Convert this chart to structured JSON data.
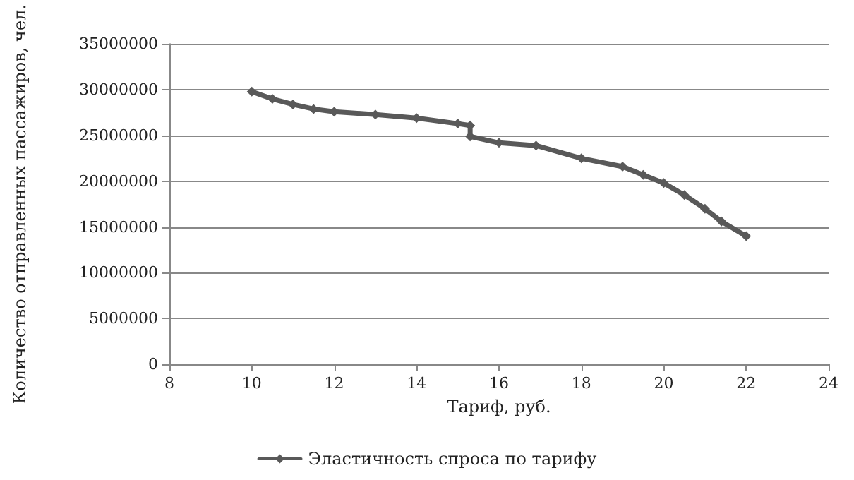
{
  "chart_data": {
    "type": "line",
    "xlabel": "Тариф, руб.",
    "ylabel": "Количество отправленных пассажиров, чел.",
    "xlim": [
      8,
      24
    ],
    "xticks": [
      8,
      10,
      12,
      14,
      16,
      18,
      20,
      22,
      24
    ],
    "ylim": [
      0,
      35000000
    ],
    "yticks": [
      0,
      5000000,
      10000000,
      15000000,
      20000000,
      25000000,
      30000000,
      35000000
    ],
    "series": [
      {
        "name": "Эластичность спроса по тарифу",
        "color": "#595959",
        "x": [
          10,
          10.5,
          11,
          11.5,
          12,
          13,
          14,
          15,
          15.3,
          15.3,
          16,
          16.9,
          18,
          19,
          19.5,
          20,
          20.5,
          21,
          21.4,
          22
        ],
        "values": [
          29800000,
          29000000,
          28400000,
          27900000,
          27600000,
          27300000,
          26900000,
          26300000,
          26100000,
          24900000,
          24200000,
          23900000,
          22500000,
          21600000,
          20700000,
          19800000,
          18500000,
          17000000,
          15600000,
          14000000
        ]
      }
    ],
    "grid": "y",
    "legend": "bottom",
    "marker": "diamond",
    "line_style": "solid"
  }
}
